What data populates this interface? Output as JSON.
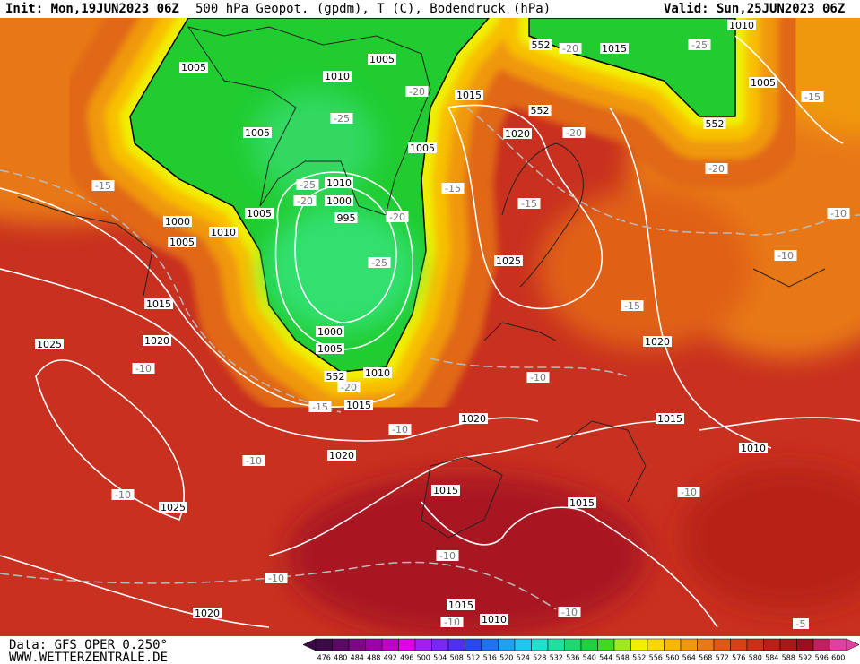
{
  "header": {
    "init": "Init: Mon,19JUN2023 06Z",
    "title": "500 hPa Geopot. (gpdm), T (C), Bodendruck (hPa)",
    "valid": "Valid: Sun,25JUN2023 06Z"
  },
  "map": {
    "labels": [
      "1005",
      "1010",
      "1005",
      "1005",
      "-25",
      "1005",
      "1010",
      "-25",
      "-20",
      "1000",
      "995",
      "-20",
      "1005",
      "1000",
      "1005",
      "1010",
      "-25",
      "1000",
      "1005",
      "1010",
      "552",
      "-20",
      "-15",
      "1015",
      "1015",
      "1020",
      "1025",
      "-10",
      "-15",
      "-20",
      "1015",
      "552",
      "-20",
      "1015",
      "-25",
      "1010",
      "1005",
      "-15",
      "552",
      "552",
      "1020",
      "-20",
      "-20",
      "-15",
      "-15",
      "-10",
      "1025",
      "-10",
      "-15",
      "1020",
      "-10",
      "1020",
      "1015",
      "-10",
      "1010",
      "1020",
      "-10",
      "-10",
      "1025",
      "1015",
      "1015",
      "-10",
      "-10",
      "-10",
      "1015",
      "1010",
      "-10",
      "-10",
      "1020",
      "-5"
    ]
  },
  "footer": {
    "data": "Data: GFS OPER 0.250°",
    "site": "WWW.WETTERZENTRALE.DE"
  },
  "colorbar": {
    "ticks": [
      476,
      480,
      484,
      488,
      492,
      496,
      500,
      504,
      508,
      512,
      516,
      520,
      524,
      528,
      532,
      536,
      540,
      544,
      548,
      552,
      556,
      560,
      564,
      568,
      572,
      576,
      580,
      584,
      588,
      592,
      596,
      600
    ],
    "colors": [
      "#3c0a46",
      "#5a0a64",
      "#7a0a82",
      "#9a00a8",
      "#c000c8",
      "#e000e8",
      "#a020f0",
      "#7828f0",
      "#5030f0",
      "#2848f0",
      "#2070f0",
      "#20a0f0",
      "#20c8f0",
      "#20e0d0",
      "#20e0a0",
      "#20d870",
      "#20d040",
      "#40d820",
      "#a0e820",
      "#f0f000",
      "#f8d800",
      "#f8b800",
      "#f09810",
      "#e87818",
      "#e05818",
      "#d84018",
      "#c83018",
      "#b82018",
      "#a81818",
      "#981020",
      "#c02060",
      "#e040a0"
    ]
  }
}
